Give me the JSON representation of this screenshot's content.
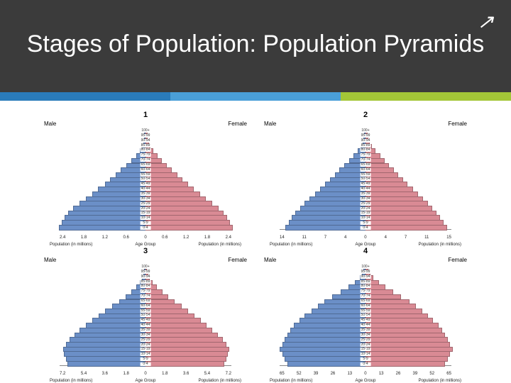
{
  "header": {
    "title": "Stages of Population: Population Pyramids",
    "arrow_glyph": "↗"
  },
  "colors": {
    "header_bg": "#3b3b3b",
    "accent": [
      "#2a7bba",
      "#4a9fd8",
      "#a3c637"
    ],
    "male_bar": "#6b8fc7",
    "female_bar": "#d98a94",
    "bar_border": "rgba(0,0,0,0.25)",
    "bg": "#ffffff"
  },
  "labels": {
    "male": "Male",
    "female": "Female",
    "age_group": "Age Group",
    "population": "Population (in millions)"
  },
  "age_groups": [
    "100+",
    "95-99",
    "90-94",
    "85-89",
    "80-84",
    "75-79",
    "70-74",
    "65-69",
    "60-64",
    "55-59",
    "50-54",
    "45-49",
    "40-44",
    "35-39",
    "30-34",
    "25-29",
    "20-24",
    "15-19",
    "10-14",
    "5-9",
    "0-4"
  ],
  "pyramids": [
    {
      "number": "1",
      "x_ticks_male": [
        "2.4",
        "1.8",
        "1.2",
        "0.6",
        "0"
      ],
      "x_ticks_female": [
        "0",
        "0.6",
        "1.2",
        "1.8",
        "2.4"
      ],
      "x_caption_left": "Population (in millions)",
      "x_caption_center": "Age Group",
      "x_caption_right": "Population (in millions)",
      "max": 2.4,
      "male": [
        0.0,
        0.01,
        0.03,
        0.06,
        0.12,
        0.22,
        0.35,
        0.5,
        0.65,
        0.8,
        0.95,
        1.1,
        1.28,
        1.45,
        1.62,
        1.8,
        1.98,
        2.12,
        2.22,
        2.3,
        2.38
      ],
      "female": [
        0.01,
        0.02,
        0.05,
        0.1,
        0.18,
        0.3,
        0.42,
        0.55,
        0.7,
        0.85,
        1.0,
        1.15,
        1.3,
        1.48,
        1.65,
        1.82,
        2.0,
        2.14,
        2.24,
        2.32,
        2.4
      ]
    },
    {
      "number": "2",
      "x_ticks_male": [
        "14",
        "11",
        "7",
        "4",
        "0"
      ],
      "x_ticks_female": [
        "0",
        "4",
        "7",
        "11",
        "15"
      ],
      "x_caption_left": "Population (in millions)",
      "x_caption_center": "Age Group",
      "x_caption_right": "Population (in millions)",
      "max": 15,
      "male": [
        0.0,
        0.1,
        0.3,
        0.6,
        1.1,
        1.8,
        2.6,
        3.5,
        4.3,
        5.1,
        5.9,
        6.8,
        7.7,
        8.6,
        9.5,
        10.4,
        11.2,
        12.0,
        12.6,
        13.2,
        13.8
      ],
      "female": [
        0.1,
        0.2,
        0.5,
        0.9,
        1.5,
        2.3,
        3.1,
        3.9,
        4.7,
        5.5,
        6.3,
        7.1,
        8.0,
        8.9,
        9.8,
        10.6,
        11.4,
        12.2,
        12.8,
        13.4,
        14.0
      ]
    },
    {
      "number": "3",
      "x_ticks_male": [
        "7.2",
        "5.4",
        "3.6",
        "1.8",
        "0"
      ],
      "x_ticks_female": [
        "0",
        "1.8",
        "3.6",
        "5.4",
        "7.2"
      ],
      "x_caption_left": "Population (in millions)",
      "x_caption_center": "Age Group",
      "x_caption_right": "Population (in millions)",
      "max": 7.2,
      "male": [
        0.0,
        0.05,
        0.15,
        0.35,
        0.65,
        1.05,
        1.55,
        2.1,
        2.7,
        3.25,
        3.8,
        4.35,
        4.9,
        5.4,
        5.85,
        6.25,
        6.55,
        6.8,
        6.7,
        6.55,
        6.4
      ],
      "female": [
        0.02,
        0.1,
        0.25,
        0.5,
        0.85,
        1.3,
        1.8,
        2.35,
        2.9,
        3.45,
        4.0,
        4.5,
        5.0,
        5.5,
        5.95,
        6.35,
        6.65,
        6.9,
        6.8,
        6.65,
        6.5
      ]
    },
    {
      "number": "4",
      "x_ticks_male": [
        "65",
        "52",
        "39",
        "26",
        "13",
        "0"
      ],
      "x_ticks_female": [
        "0",
        "13",
        "26",
        "39",
        "52",
        "65"
      ],
      "x_caption_left": "Population (in millions)",
      "x_caption_center": "Age Group",
      "x_caption_right": "Population (in millions)",
      "max": 65,
      "male": [
        0.5,
        1.5,
        3.5,
        7.0,
        12.0,
        18.0,
        24.0,
        30.0,
        35.0,
        40.0,
        45.0,
        49.0,
        53.0,
        56.0,
        58.0,
        60.0,
        62.0,
        64.0,
        62.0,
        60.0,
        58.0
      ],
      "female": [
        1.0,
        2.5,
        5.0,
        9.0,
        14.0,
        20.0,
        26.0,
        32.0,
        37.0,
        42.0,
        46.0,
        50.0,
        54.0,
        57.0,
        59.0,
        61.0,
        63.0,
        65.0,
        63.0,
        61.0,
        59.0
      ]
    }
  ],
  "typography": {
    "title_fontsize": 34,
    "panel_number_fontsize": 11,
    "axis_label_fontsize": 6,
    "age_label_fontsize": 5
  }
}
